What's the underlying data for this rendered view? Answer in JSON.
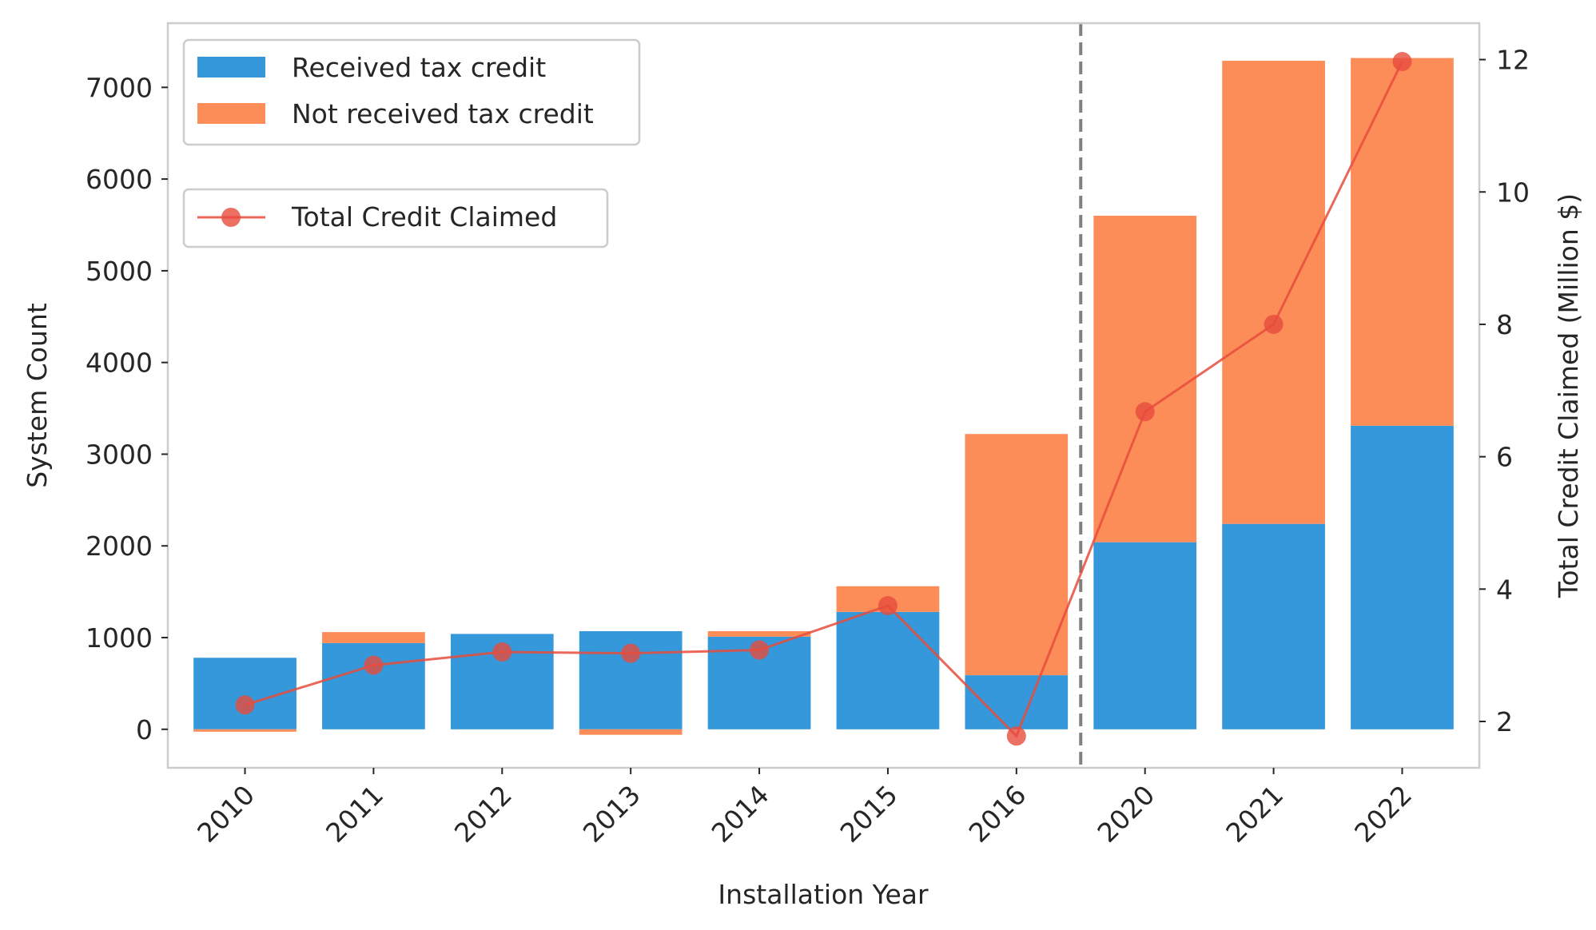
{
  "chart_data": {
    "type": "bar",
    "stacked": true,
    "categories": [
      "2010",
      "2011",
      "2012",
      "2013",
      "2014",
      "2015",
      "2016",
      "2020",
      "2021",
      "2022"
    ],
    "series": [
      {
        "name": "Received tax credit",
        "color": "#3498db",
        "axis": "left",
        "values": [
          780,
          940,
          1040,
          1070,
          1010,
          1280,
          590,
          2040,
          2240,
          3310
        ]
      },
      {
        "name": "Not received tax credit",
        "color": "#fc8d59",
        "axis": "left",
        "values": [
          -10,
          120,
          0,
          -60,
          60,
          280,
          2630,
          3560,
          5050,
          4010
        ]
      },
      {
        "name": "Total Credit Claimed",
        "type": "line",
        "marker": "circle",
        "color": "#e74c3c",
        "axis": "right",
        "values": [
          2.25,
          2.85,
          3.05,
          3.03,
          3.08,
          3.75,
          1.78,
          6.68,
          8.0,
          11.97
        ]
      }
    ],
    "xlabel": "Installation Year",
    "ylabel": "System Count",
    "y2label": "Total Credit Claimed (Million $)",
    "ylim": [
      -420,
      7700
    ],
    "y2lim": [
      1.3,
      12.55
    ],
    "yticks": [
      "0",
      "1000",
      "2000",
      "3000",
      "4000",
      "5000",
      "6000",
      "7000"
    ],
    "y2ticks": [
      "2",
      "4",
      "6",
      "8",
      "10",
      "12"
    ],
    "divider_after_category": "2016",
    "grid": false,
    "legend_bars_placement": "top-left",
    "legend_line_placement": "upper-left"
  }
}
